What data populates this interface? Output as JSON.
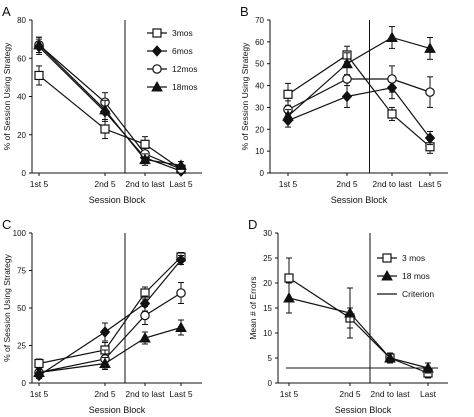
{
  "chart_data": [
    {
      "panel": "A",
      "type": "line",
      "categories": [
        "1st 5",
        "2nd 5",
        "2nd to last",
        "Last 5"
      ],
      "xlabel": "Session Block",
      "ylabel": "% of Session Using Strategy",
      "ylim": [
        0,
        80
      ],
      "yticks": [
        0,
        20,
        40,
        60,
        80
      ],
      "divider_after_index": 1,
      "legend": {
        "placement": "top-right"
      },
      "series": [
        {
          "name": "3mos",
          "marker": "square",
          "values": [
            51,
            23,
            15,
            2
          ],
          "errors": [
            5,
            5,
            4,
            2
          ]
        },
        {
          "name": "6mos",
          "marker": "diamond",
          "values": [
            66,
            32,
            8,
            1
          ],
          "errors": [
            4,
            5,
            3,
            1
          ]
        },
        {
          "name": "12mos",
          "marker": "circle",
          "values": [
            67,
            37,
            10,
            2
          ],
          "errors": [
            4,
            5,
            3,
            1
          ]
        },
        {
          "name": "18mos",
          "marker": "triangle",
          "values": [
            67,
            33,
            7,
            4
          ],
          "errors": [
            4,
            5,
            3,
            2
          ]
        }
      ]
    },
    {
      "panel": "B",
      "type": "line",
      "categories": [
        "1st 5",
        "2nd 5",
        "2nd to last",
        "Last 5"
      ],
      "xlabel": "Session Block",
      "ylabel": "% of Session Using Strategy",
      "ylim": [
        0,
        70
      ],
      "yticks": [
        0,
        10,
        20,
        30,
        40,
        50,
        60,
        70
      ],
      "divider_after_index": 1,
      "series": [
        {
          "name": "3mos",
          "marker": "square",
          "values": [
            36,
            54,
            27,
            12
          ],
          "errors": [
            5,
            4,
            3,
            3
          ]
        },
        {
          "name": "6mos",
          "marker": "diamond",
          "values": [
            24,
            35,
            39,
            16
          ],
          "errors": [
            3,
            5,
            5,
            3
          ]
        },
        {
          "name": "12mos",
          "marker": "circle",
          "values": [
            29,
            43,
            43,
            37
          ],
          "errors": [
            4,
            8,
            6,
            7
          ]
        },
        {
          "name": "18mos",
          "marker": "triangle",
          "values": [
            26,
            50,
            62,
            57
          ],
          "errors": [
            3,
            5,
            5,
            5
          ]
        }
      ]
    },
    {
      "panel": "C",
      "type": "line",
      "categories": [
        "1st 5",
        "2nd 5",
        "2nd to last",
        "Last 5"
      ],
      "xlabel": "Session Block",
      "ylabel": "% of Session Using Strategy",
      "ylim": [
        0,
        100
      ],
      "yticks": [
        0,
        25,
        50,
        75,
        100
      ],
      "divider_after_index": 1,
      "series": [
        {
          "name": "3mos",
          "marker": "square",
          "values": [
            13,
            22,
            60,
            84
          ],
          "errors": [
            3,
            5,
            4,
            3
          ]
        },
        {
          "name": "6mos",
          "marker": "diamond",
          "values": [
            5,
            34,
            53,
            82
          ],
          "errors": [
            2,
            6,
            5,
            3
          ]
        },
        {
          "name": "12mos",
          "marker": "circle",
          "values": [
            7,
            16,
            45,
            60
          ],
          "errors": [
            3,
            6,
            6,
            7
          ]
        },
        {
          "name": "18mos",
          "marker": "triangle",
          "values": [
            7,
            13,
            30,
            37
          ],
          "errors": [
            2,
            4,
            4,
            5
          ]
        }
      ]
    },
    {
      "panel": "D",
      "type": "line",
      "categories": [
        "1st 5",
        "2nd 5",
        "2nd to last",
        "Last"
      ],
      "xlabel": "Session Block",
      "ylabel": "Mean # of Errors",
      "ylim": [
        0,
        30
      ],
      "yticks": [
        0,
        5,
        10,
        15,
        20,
        25,
        30
      ],
      "divider_after_index": 1,
      "criterion": 3,
      "legend": {
        "placement": "top-right"
      },
      "series": [
        {
          "name": "3 mos",
          "marker": "square",
          "values": [
            21,
            13,
            5,
            2
          ],
          "errors": [
            4,
            2,
            1,
            1
          ]
        },
        {
          "name": "18 mos",
          "marker": "triangle",
          "values": [
            17,
            14,
            5,
            3
          ],
          "errors": [
            3,
            5,
            1,
            1
          ]
        }
      ],
      "criterion_label": "Criterion"
    }
  ]
}
